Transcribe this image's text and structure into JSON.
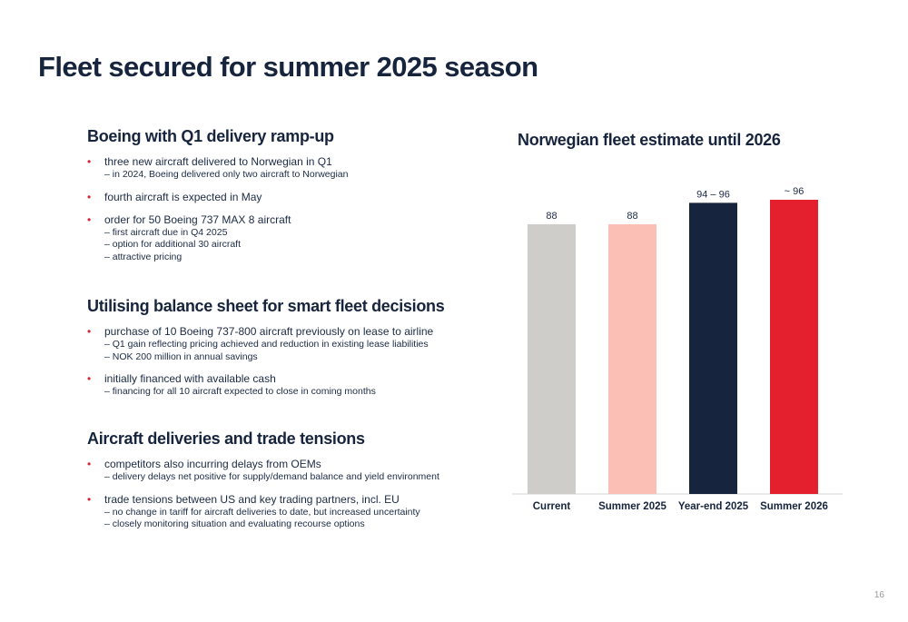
{
  "page": {
    "title": "Fleet secured for summer 2025 season",
    "page_number": "16"
  },
  "left": {
    "sections": [
      {
        "heading": "Boeing with Q1 delivery ramp-up",
        "bullets": [
          {
            "main": "three new aircraft delivered to Norwegian in Q1",
            "subs": [
              "– in 2024, Boeing delivered only two aircraft to Norwegian"
            ]
          },
          {
            "main": "fourth aircraft is expected in May",
            "subs": []
          },
          {
            "main": "order for 50 Boeing 737 MAX 8 aircraft",
            "subs": [
              "– first aircraft due in Q4 2025",
              "– option for additional 30 aircraft",
              "– attractive pricing"
            ]
          }
        ]
      },
      {
        "heading": "Utilising balance sheet for smart fleet decisions",
        "bullets": [
          {
            "main": "purchase of 10 Boeing 737-800 aircraft previously on lease to airline",
            "subs": [
              "– Q1 gain reflecting pricing achieved and reduction in existing lease liabilities",
              "– NOK 200 million in annual savings"
            ]
          },
          {
            "main": "initially financed with available cash",
            "subs": [
              "– financing for all 10 aircraft expected to close in coming months"
            ]
          }
        ]
      },
      {
        "heading": "Aircraft deliveries and trade tensions",
        "bullets": [
          {
            "main": "competitors also incurring delays from OEMs",
            "subs": [
              "– delivery delays net positive for supply/demand balance and yield environment"
            ]
          },
          {
            "main": "trade tensions between US and key trading partners, incl. EU",
            "subs": [
              "– no change in tariff for aircraft deliveries to date, but increased uncertainty",
              "– closely monitoring situation and evaluating recourse options"
            ]
          }
        ]
      }
    ]
  },
  "chart_data": {
    "type": "bar",
    "title": "Norwegian fleet estimate until 2026",
    "categories": [
      "Current",
      "Summer 2025",
      "Year-end 2025",
      "Summer 2026"
    ],
    "values": [
      88,
      88,
      95,
      96
    ],
    "data_labels": [
      "88",
      "88",
      "94 – 96",
      "~ 96"
    ],
    "colors": [
      "#cfcdc9",
      "#fcbfb6",
      "#17243d",
      "#e4202e"
    ],
    "xlabel": "",
    "ylabel": "",
    "ylim": [
      0,
      96
    ],
    "grid": false,
    "legend": "none"
  }
}
